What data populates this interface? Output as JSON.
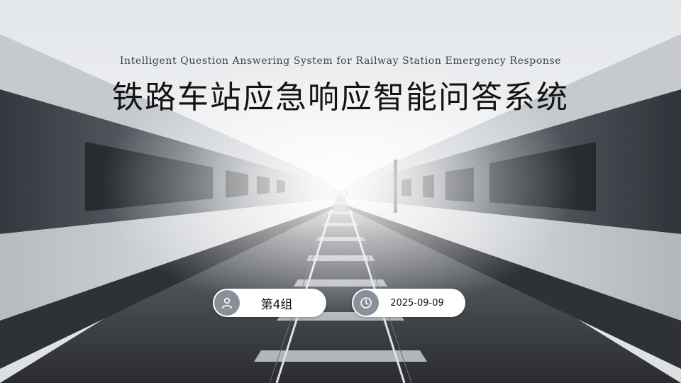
{
  "slide": {
    "subtitle": "Intelligent Question Answering System for Railway Station Emergency Response",
    "title": "铁路车站应急响应智能问答系统"
  },
  "info": {
    "group_label": "第4组",
    "group_icon": "user-icon",
    "date": "2025-09-09",
    "date_icon": "clock-icon"
  },
  "colors": {
    "icon_circle": "#8a9099",
    "pill_bg": "#ffffff",
    "title_text": "#141414"
  }
}
